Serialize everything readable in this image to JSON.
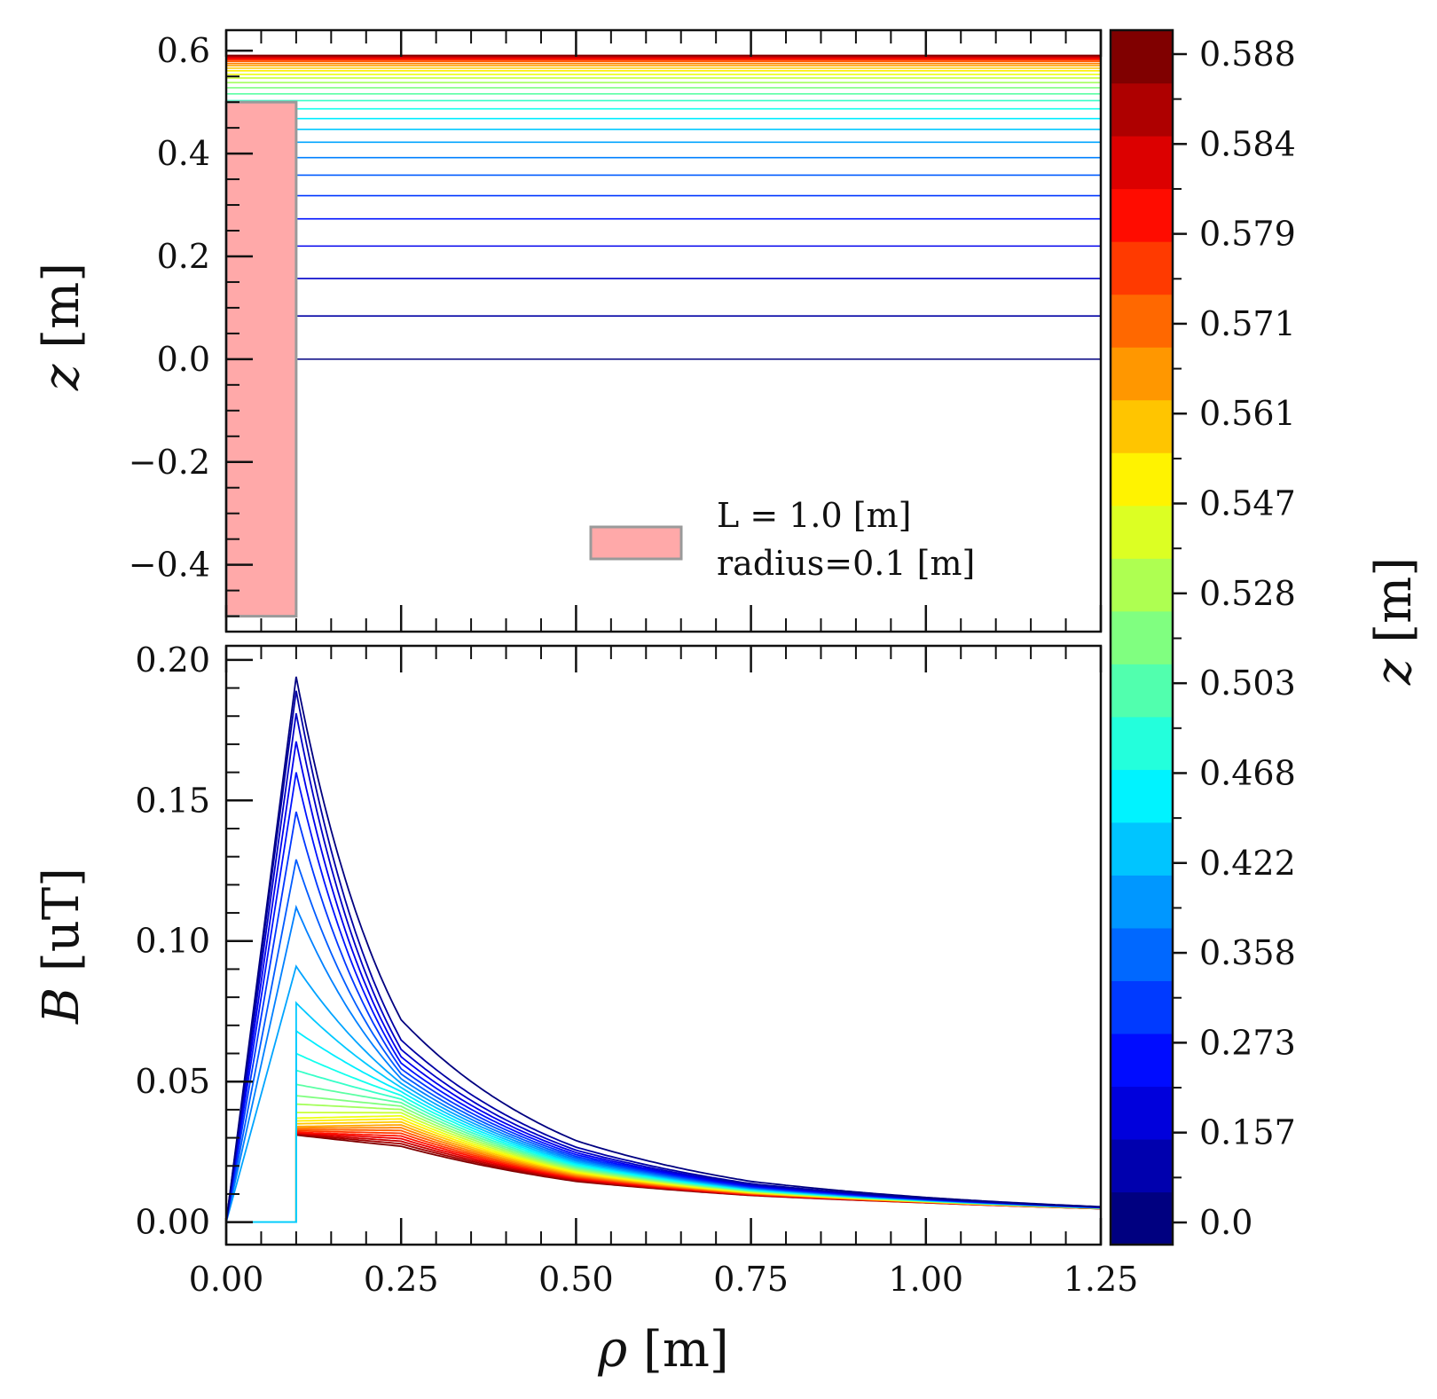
{
  "chart_data": [
    {
      "type": "line",
      "panel": "top",
      "description_key": "conductor geometry and field-sample heights",
      "xlim": [
        0.0,
        1.25
      ],
      "ylim": [
        -0.53,
        0.64
      ],
      "xlabel": "",
      "ylabel": {
        "symbol": "z",
        "unit": "[m]"
      },
      "yticks": [
        -0.4,
        -0.2,
        0.0,
        0.2,
        0.4,
        0.6
      ],
      "ytick_labels": [
        "−0.4",
        "−0.2",
        "0.0",
        "0.2",
        "0.4",
        "0.6"
      ],
      "rectangle": {
        "x0": 0.0,
        "x1": 0.1,
        "y0": -0.5,
        "y1": 0.5,
        "fill": "#ffa9a9",
        "edge": "#9a9a9a"
      },
      "legend": {
        "lines": [
          "L = 1.0 [m]",
          "radius=0.1 [m]"
        ],
        "location": "lower-right"
      },
      "z_values": [
        0.0,
        0.084,
        0.157,
        0.22,
        0.273,
        0.318,
        0.358,
        0.392,
        0.422,
        0.447,
        0.468,
        0.487,
        0.503,
        0.516,
        0.528,
        0.538,
        0.547,
        0.554,
        0.561,
        0.566,
        0.571,
        0.575,
        0.579,
        0.582,
        0.584,
        0.586,
        0.588,
        0.59,
        0.591
      ]
    },
    {
      "type": "line",
      "panel": "bottom",
      "description_key": "radial field profiles",
      "xlim": [
        0.0,
        1.25
      ],
      "ylim": [
        -0.008,
        0.205
      ],
      "xlabel": {
        "symbol": "ρ",
        "unit": "[m]"
      },
      "ylabel": {
        "symbol": "B",
        "unit": "[uT]"
      },
      "xticks": [
        0.0,
        0.25,
        0.5,
        0.75,
        1.0,
        1.25
      ],
      "xtick_labels": [
        "0.00",
        "0.25",
        "0.50",
        "0.75",
        "1.00",
        "1.25"
      ],
      "yticks": [
        0.0,
        0.05,
        0.1,
        0.15,
        0.2
      ],
      "ytick_labels": [
        "0.00",
        "0.05",
        "0.10",
        "0.15",
        "0.20"
      ],
      "inside_peak_values": [
        0.194,
        0.189,
        0.181,
        0.171,
        0.16,
        0.146,
        0.129,
        0.112,
        0.091
      ],
      "outside_start_values": [
        0.194,
        0.189,
        0.181,
        0.171,
        0.16,
        0.146,
        0.129,
        0.112,
        0.091,
        0.078,
        0.068,
        0.06,
        0.054,
        0.049,
        0.045,
        0.042,
        0.039,
        0.037,
        0.036,
        0.035,
        0.034,
        0.0335,
        0.033,
        0.0325,
        0.032,
        0.0318,
        0.0315,
        0.0313,
        0.031
      ],
      "outside_values": {
        "0.25": {
          "first": 0.072,
          "last": 0.027
        },
        "0.50": {
          "first": 0.029,
          "last": 0.0145
        },
        "0.75": {
          "first": 0.0145,
          "last": 0.0095
        },
        "1.00": {
          "first": 0.0088,
          "last": 0.0069
        },
        "1.25": {
          "first": 0.0055,
          "last": 0.0048
        }
      }
    },
    {
      "type": "colorbar",
      "label": {
        "symbol": "z",
        "unit": "[m]"
      },
      "tick_labels": [
        "0.0",
        "0.157",
        "0.273",
        "0.358",
        "0.422",
        "0.468",
        "0.503",
        "0.528",
        "0.547",
        "0.561",
        "0.571",
        "0.579",
        "0.584",
        "0.588"
      ],
      "colormap": "jet",
      "n_bins": 23
    }
  ]
}
